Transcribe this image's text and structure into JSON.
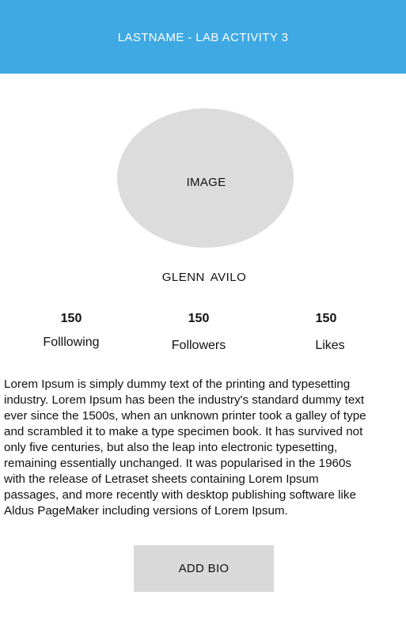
{
  "header": {
    "title": "LASTNAME - LAB ACTIVITY 3"
  },
  "profile": {
    "image_placeholder": "IMAGE",
    "name": "GLENN  AVILO"
  },
  "stats": {
    "following": {
      "count": "150",
      "label": "Folllowing"
    },
    "followers": {
      "count": "150",
      "label": "Followers"
    },
    "likes": {
      "count": "150",
      "label": "Likes"
    }
  },
  "bio": {
    "text": "Lorem Ipsum is simply dummy text of the printing and typesetting\nindustry. Lorem Ipsum has been the industry's standard dummy text\never since the 1500s, when an unknown printer took a galley of type\nand scrambled it to make a type specimen book. It has survived not\nonly five centuries, but  also the leap into electronic typesetting,\nremaining essentially unchanged. It was popularised in the 1960s\nwith the release  of Letraset sheets containing Lorem Ipsum\npassages, and  more recently with desktop publishing software like\nAldus  PageMaker including versions of Lorem Ipsum."
  },
  "actions": {
    "add_bio_label": "ADD BIO"
  },
  "colors": {
    "header_bg": "#3fa9e3",
    "placeholder_bg": "#dcdcdc",
    "button_bg": "#d9d9d9"
  }
}
